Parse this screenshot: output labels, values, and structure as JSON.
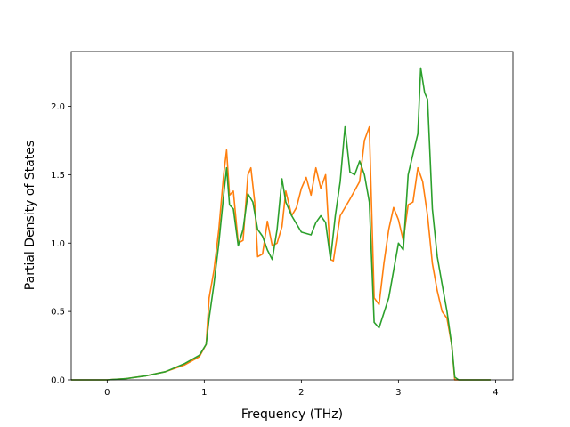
{
  "chart_data": {
    "type": "line",
    "xlabel": "Frequency (THz)",
    "ylabel": "Partial Density of States",
    "xlim": [
      -0.37,
      4.18
    ],
    "ylim": [
      0.0,
      2.4
    ],
    "xticks": [
      0,
      1,
      2,
      3,
      4
    ],
    "yticks": [
      0.0,
      0.5,
      1.0,
      1.5,
      2.0
    ],
    "xtick_labels": [
      "0",
      "1",
      "2",
      "3",
      "4"
    ],
    "ytick_labels": [
      "0.0",
      "0.5",
      "1.0",
      "1.5",
      "2.0"
    ],
    "grid": false,
    "series": [
      {
        "color": "#ff7f0e",
        "x": [
          -0.37,
          0.0,
          0.2,
          0.4,
          0.6,
          0.8,
          0.95,
          1.02,
          1.05,
          1.1,
          1.15,
          1.2,
          1.23,
          1.26,
          1.3,
          1.35,
          1.4,
          1.45,
          1.48,
          1.52,
          1.55,
          1.6,
          1.65,
          1.7,
          1.75,
          1.8,
          1.84,
          1.9,
          1.95,
          2.0,
          2.05,
          2.1,
          2.15,
          2.2,
          2.25,
          2.3,
          2.33,
          2.4,
          2.5,
          2.6,
          2.65,
          2.7,
          2.75,
          2.8,
          2.85,
          2.9,
          2.95,
          3.0,
          3.05,
          3.1,
          3.15,
          3.2,
          3.25,
          3.3,
          3.35,
          3.4,
          3.45,
          3.5,
          3.55,
          3.58,
          3.62,
          3.7,
          3.95
        ],
        "y": [
          0.0,
          0.0,
          0.01,
          0.03,
          0.06,
          0.11,
          0.17,
          0.26,
          0.6,
          0.8,
          1.1,
          1.5,
          1.68,
          1.35,
          1.38,
          1.0,
          1.02,
          1.5,
          1.55,
          1.3,
          0.9,
          0.92,
          1.16,
          0.98,
          1.0,
          1.12,
          1.38,
          1.2,
          1.26,
          1.4,
          1.48,
          1.35,
          1.55,
          1.4,
          1.5,
          0.88,
          0.87,
          1.2,
          1.32,
          1.45,
          1.75,
          1.85,
          0.6,
          0.55,
          0.85,
          1.1,
          1.26,
          1.17,
          1.02,
          1.28,
          1.3,
          1.55,
          1.45,
          1.2,
          0.85,
          0.65,
          0.5,
          0.45,
          0.25,
          0.0,
          0.0,
          0.0,
          0.0
        ]
      },
      {
        "color": "#2ca02c",
        "x": [
          -0.37,
          0.0,
          0.2,
          0.4,
          0.6,
          0.8,
          0.95,
          1.02,
          1.05,
          1.1,
          1.15,
          1.2,
          1.23,
          1.26,
          1.3,
          1.35,
          1.4,
          1.45,
          1.5,
          1.55,
          1.6,
          1.65,
          1.7,
          1.75,
          1.8,
          1.84,
          1.9,
          2.0,
          2.1,
          2.15,
          2.2,
          2.25,
          2.3,
          2.35,
          2.4,
          2.45,
          2.5,
          2.55,
          2.6,
          2.65,
          2.7,
          2.75,
          2.8,
          2.9,
          3.0,
          3.05,
          3.1,
          3.15,
          3.2,
          3.23,
          3.27,
          3.3,
          3.35,
          3.4,
          3.45,
          3.5,
          3.55,
          3.58,
          3.62,
          3.7,
          3.95
        ],
        "y": [
          0.0,
          0.0,
          0.01,
          0.03,
          0.06,
          0.12,
          0.18,
          0.26,
          0.45,
          0.7,
          1.0,
          1.35,
          1.55,
          1.28,
          1.25,
          0.98,
          1.1,
          1.36,
          1.3,
          1.1,
          1.05,
          0.95,
          0.88,
          1.1,
          1.47,
          1.3,
          1.2,
          1.08,
          1.06,
          1.15,
          1.2,
          1.15,
          0.88,
          1.2,
          1.45,
          1.85,
          1.52,
          1.5,
          1.6,
          1.5,
          1.3,
          0.42,
          0.38,
          0.6,
          1.0,
          0.95,
          1.5,
          1.65,
          1.8,
          2.28,
          2.1,
          2.05,
          1.25,
          0.9,
          0.7,
          0.5,
          0.25,
          0.02,
          0.0,
          0.0,
          0.0
        ]
      }
    ]
  }
}
